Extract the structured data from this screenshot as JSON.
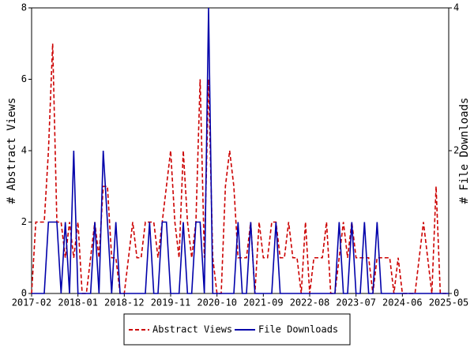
{
  "chart_data": {
    "type": "line",
    "x": [
      "2017-02",
      "2017-03",
      "2017-04",
      "2017-05",
      "2017-06",
      "2017-07",
      "2017-08",
      "2017-09",
      "2017-10",
      "2017-11",
      "2017-12",
      "2018-01",
      "2018-02",
      "2018-03",
      "2018-04",
      "2018-05",
      "2018-06",
      "2018-07",
      "2018-08",
      "2018-09",
      "2018-10",
      "2018-11",
      "2018-12",
      "2019-01",
      "2019-02",
      "2019-03",
      "2019-04",
      "2019-05",
      "2019-06",
      "2019-07",
      "2019-08",
      "2019-09",
      "2019-10",
      "2019-11",
      "2019-12",
      "2020-01",
      "2020-02",
      "2020-03",
      "2020-04",
      "2020-05",
      "2020-06",
      "2020-07",
      "2020-08",
      "2020-09",
      "2020-10",
      "2020-11",
      "2020-12",
      "2021-01",
      "2021-02",
      "2021-03",
      "2021-04",
      "2021-05",
      "2021-06",
      "2021-07",
      "2021-08",
      "2021-09",
      "2021-10",
      "2021-11",
      "2021-12",
      "2022-01",
      "2022-02",
      "2022-03",
      "2022-04",
      "2022-05",
      "2022-06",
      "2022-07",
      "2022-08",
      "2022-09",
      "2022-10",
      "2022-11",
      "2022-12",
      "2023-01",
      "2023-02",
      "2023-03",
      "2023-04",
      "2023-05",
      "2023-06",
      "2023-07",
      "2023-08",
      "2023-09",
      "2023-10",
      "2023-11",
      "2023-12",
      "2024-01",
      "2024-02",
      "2024-03",
      "2024-04",
      "2024-05",
      "2024-06",
      "2024-07",
      "2024-08",
      "2024-09",
      "2024-10",
      "2024-11",
      "2024-12",
      "2025-01",
      "2025-02",
      "2025-03",
      "2025-04",
      "2025-05"
    ],
    "xticks": [
      "2017-02",
      "2018-01",
      "2018-12",
      "2019-11",
      "2020-10",
      "2021-09",
      "2022-08",
      "2023-07",
      "2024-06",
      "2025-05"
    ],
    "ylabel": "# Abstract Views",
    "y2label": "# File Downloads",
    "ylim": [
      0,
      8
    ],
    "yticks": [
      0,
      2,
      4,
      6,
      8
    ],
    "y2lim": [
      0,
      4
    ],
    "y2ticks": [
      0,
      2,
      4
    ],
    "legend": "bottom",
    "series": [
      {
        "name": "Abstract Views",
        "color": "#cc0000",
        "dash": true,
        "values": [
          0,
          2,
          2,
          2,
          4,
          7,
          2,
          2,
          1,
          2,
          1,
          2,
          0,
          0,
          1,
          2,
          1,
          3,
          3,
          1,
          1,
          0,
          0,
          1,
          2,
          1,
          1,
          2,
          2,
          2,
          1,
          2,
          3,
          4,
          2,
          1,
          4,
          2,
          1,
          2,
          6,
          1,
          6,
          1,
          0,
          0,
          3,
          4,
          3,
          1,
          1,
          1,
          2,
          0,
          2,
          1,
          1,
          2,
          2,
          1,
          1,
          2,
          1,
          1,
          0,
          2,
          0,
          1,
          1,
          1,
          2,
          0,
          0,
          1,
          2,
          1,
          2,
          1,
          1,
          1,
          1,
          0,
          1,
          1,
          1,
          1,
          0,
          1,
          0,
          0,
          0,
          0,
          1,
          2,
          1,
          0,
          3,
          0,
          0,
          0
        ]
      },
      {
        "name": "File Downloads",
        "color": "#0000aa",
        "axis": "y2",
        "values": [
          0,
          0,
          0,
          0,
          1,
          1,
          1,
          0,
          1,
          0,
          2,
          0,
          0,
          0,
          0,
          1,
          0,
          2,
          1,
          0,
          1,
          0,
          0,
          0,
          0,
          0,
          0,
          0,
          1,
          0,
          0,
          1,
          1,
          0,
          0,
          0,
          1,
          0,
          0,
          1,
          1,
          0,
          4,
          0,
          0,
          0,
          0,
          0,
          0,
          1,
          0,
          0,
          1,
          0,
          0,
          0,
          0,
          0,
          1,
          0,
          0,
          0,
          0,
          0,
          0,
          0,
          0,
          0,
          0,
          0,
          0,
          0,
          0,
          1,
          0,
          0,
          1,
          0,
          0,
          1,
          0,
          0,
          1,
          0,
          0,
          0,
          0,
          0,
          0,
          0,
          0,
          0,
          0,
          0,
          0,
          0,
          0,
          0,
          0,
          0
        ]
      }
    ]
  }
}
